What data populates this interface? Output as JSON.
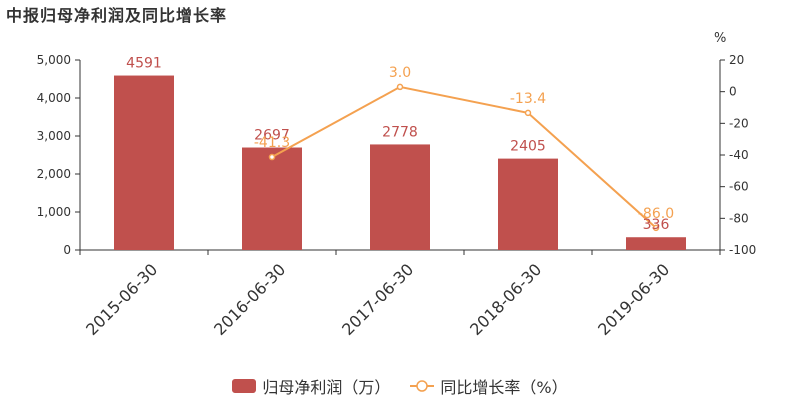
{
  "title": "中报归母净利润及同比增长率",
  "chart_data": {
    "type": "bar",
    "categories": [
      "2015-06-30",
      "2016-06-30",
      "2017-06-30",
      "2018-06-30",
      "2019-06-30"
    ],
    "series": [
      {
        "name": "归母净利润（万）",
        "type": "bar",
        "axis": "left",
        "values": [
          4591,
          2697,
          2778,
          2405,
          336
        ],
        "color": "#c0504d"
      },
      {
        "name": "同比增长率（%）",
        "type": "line",
        "axis": "right",
        "values": [
          null,
          -41.3,
          3.0,
          -13.4,
          -86.0
        ],
        "color": "#f4a150"
      }
    ],
    "y_left": {
      "min": 0,
      "max": 5000,
      "ticks": [
        "0",
        "1,000",
        "2,000",
        "3,000",
        "4,000",
        "5,000"
      ]
    },
    "y_right": {
      "min": -100,
      "max": 20,
      "ticks": [
        "-100",
        "-80",
        "-60",
        "-40",
        "-20",
        "0",
        "20"
      ],
      "unit": "%"
    },
    "bar_labels": [
      "4591",
      "2697",
      "2778",
      "2405",
      "336"
    ],
    "line_labels": [
      "",
      "-41.3",
      "3.0",
      "-13.4",
      "-86.0"
    ],
    "legend_position": "bottom-center",
    "grid": false
  },
  "legend": {
    "bar_label": "归母净利润（万）",
    "line_label": "同比增长率（%）"
  }
}
